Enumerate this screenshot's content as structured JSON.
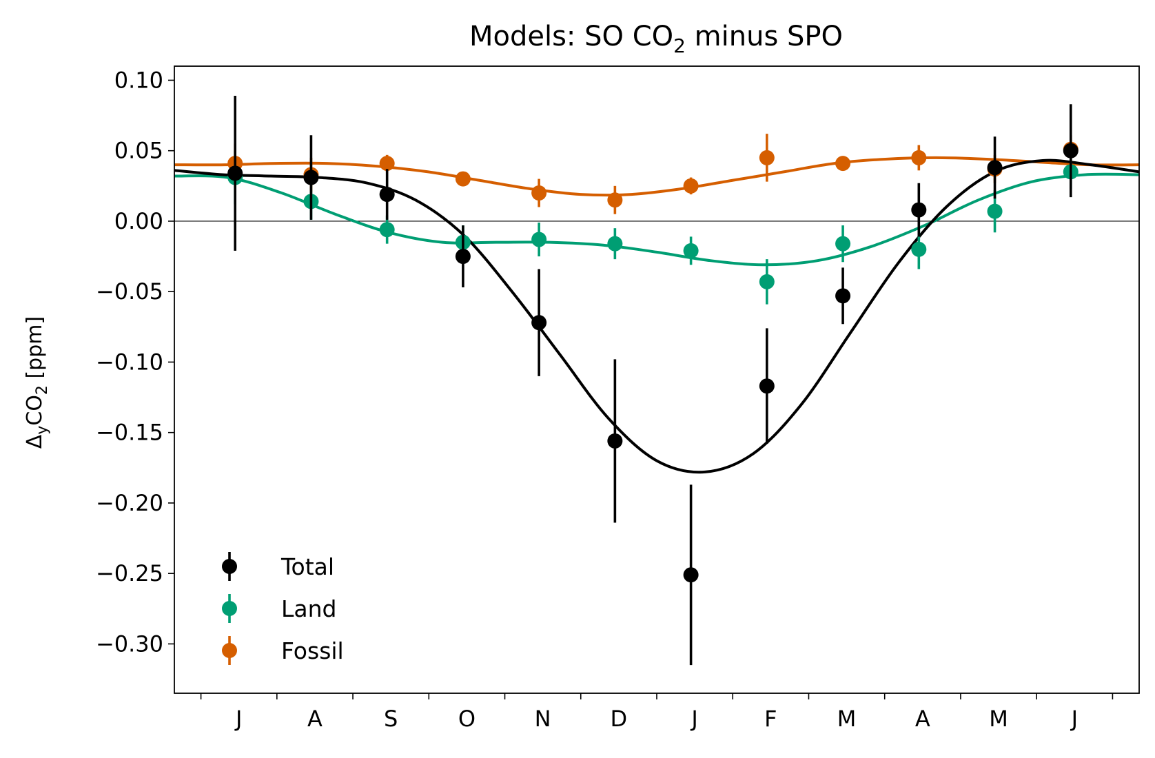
{
  "chart_data": {
    "type": "scatter",
    "title_main": "Models: SO CO",
    "title_sub": "2",
    "title_rest": " minus SPO",
    "ylabel_main": "Δ",
    "ylabel_sub1": "y",
    "ylabel_mid": "CO",
    "ylabel_sub2": "2",
    "ylabel_rest": " [ppm]",
    "ylim": [
      -0.335,
      0.11
    ],
    "xlim": [
      0,
      12.7
    ],
    "yticks": [
      0.1,
      0.05,
      0.0,
      -0.05,
      -0.1,
      -0.15,
      -0.2,
      -0.25,
      -0.3
    ],
    "ytick_labels": [
      "0.10",
      "0.05",
      "0.00",
      "−0.05",
      "−0.10",
      "−0.15",
      "−0.20",
      "−0.25",
      "−0.30"
    ],
    "months": [
      "J",
      "A",
      "S",
      "O",
      "N",
      "D",
      "J",
      "F",
      "M",
      "A",
      "M",
      "J"
    ],
    "zero_line": true,
    "legend_position": "lower-left",
    "series": [
      {
        "name": "Total",
        "color": "#000000",
        "x": [
          0.8,
          1.8,
          2.8,
          3.8,
          4.8,
          5.8,
          6.8,
          7.8,
          8.8,
          9.8,
          10.8,
          11.8
        ],
        "y": [
          0.034,
          0.031,
          0.019,
          -0.025,
          -0.072,
          -0.156,
          -0.251,
          -0.117,
          -0.053,
          0.008,
          0.038,
          0.05
        ],
        "err": [
          0.055,
          0.03,
          0.018,
          0.022,
          0.038,
          0.058,
          0.064,
          0.041,
          0.02,
          0.019,
          0.022,
          0.033
        ],
        "fit": [
          0.036,
          0.033,
          0.032,
          0.031,
          0.027,
          0.015,
          -0.01,
          -0.05,
          -0.095,
          -0.14,
          -0.17,
          -0.178,
          -0.165,
          -0.13,
          -0.08,
          -0.03,
          0.01,
          0.035,
          0.043,
          0.04,
          0.035
        ]
      },
      {
        "name": "Land",
        "color": "#009E73",
        "x": [
          0.8,
          1.8,
          2.8,
          3.8,
          4.8,
          5.8,
          6.8,
          7.8,
          8.8,
          9.8,
          10.8,
          11.8
        ],
        "y": [
          0.031,
          0.014,
          -0.006,
          -0.015,
          -0.013,
          -0.016,
          -0.021,
          -0.043,
          -0.016,
          -0.02,
          0.007,
          0.035
        ],
        "err": [
          0.019,
          0.013,
          0.01,
          0.012,
          0.012,
          0.011,
          0.01,
          0.016,
          0.013,
          0.014,
          0.015,
          0.012
        ],
        "fit": [
          0.032,
          0.031,
          0.02,
          0.005,
          -0.008,
          -0.015,
          -0.015,
          -0.015,
          -0.017,
          -0.022,
          -0.028,
          -0.031,
          -0.028,
          -0.018,
          -0.003,
          0.015,
          0.028,
          0.033,
          0.033
        ]
      },
      {
        "name": "Fossil",
        "color": "#D55E00",
        "x": [
          0.8,
          1.8,
          2.8,
          3.8,
          4.8,
          5.8,
          6.8,
          7.8,
          8.8,
          9.8,
          10.8,
          11.8
        ],
        "y": [
          0.041,
          0.033,
          0.041,
          0.03,
          0.02,
          0.015,
          0.025,
          0.045,
          0.041,
          0.045,
          0.037,
          0.051
        ],
        "err": [
          0.014,
          0.012,
          0.006,
          0.005,
          0.01,
          0.01,
          0.006,
          0.017,
          0.005,
          0.009,
          0.01,
          0.01
        ],
        "fit": [
          0.04,
          0.04,
          0.041,
          0.041,
          0.039,
          0.035,
          0.029,
          0.023,
          0.019,
          0.019,
          0.023,
          0.029,
          0.035,
          0.041,
          0.044,
          0.045,
          0.044,
          0.042,
          0.04,
          0.04
        ]
      }
    ]
  }
}
